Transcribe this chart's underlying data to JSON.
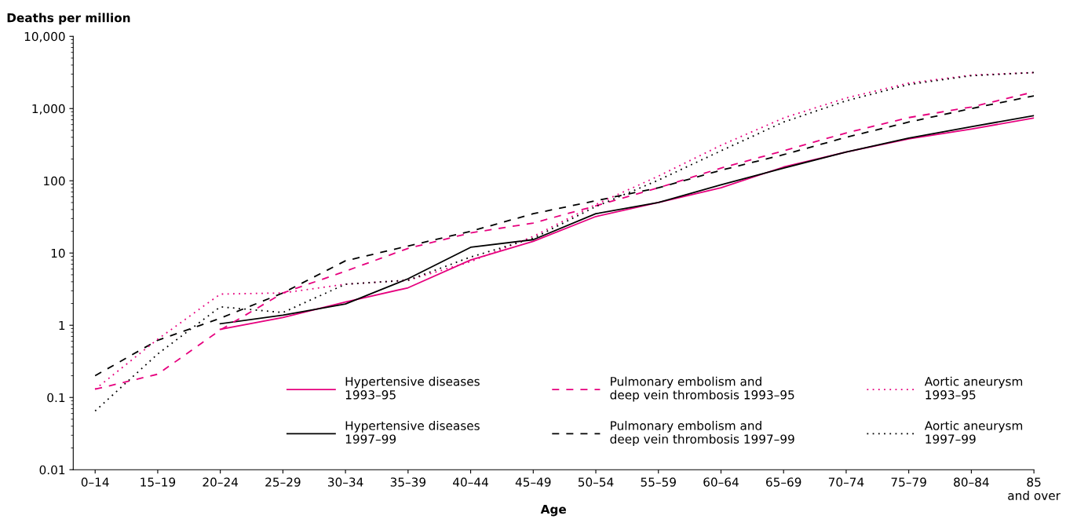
{
  "chart_data": {
    "type": "line",
    "ylabel": "Deaths per million",
    "xlabel": "Age",
    "categories": [
      "0–14",
      "15–19",
      "20–24",
      "25–29",
      "30–34",
      "35–39",
      "40–44",
      "45–49",
      "50–54",
      "55–59",
      "60–64",
      "65–69",
      "70–74",
      "75–79",
      "80–84",
      "85\nand over"
    ],
    "log": "y",
    "ylim": [
      0.01,
      10000
    ],
    "yticks": [
      0.01,
      0.1,
      1,
      10,
      100,
      {
        "value": 1000,
        "label": "1,000"
      },
      {
        "value": 10000,
        "label": "10,000"
      }
    ],
    "grid": false,
    "legend": "bottom right",
    "marker": "none",
    "series": [
      {
        "name": "Hypertensive diseases\n1993–95",
        "color": "#e6007e",
        "line_style": "solid",
        "values": [
          null,
          null,
          0.88,
          1.28,
          2.1,
          3.3,
          8,
          14.5,
          32,
          50,
          80,
          155,
          250,
          380,
          520,
          740
        ]
      },
      {
        "name": "Hypertensive diseases\n1997–99",
        "color": "#000000",
        "line_style": "solid",
        "values": [
          null,
          null,
          1.05,
          1.38,
          1.97,
          4.4,
          12,
          15.3,
          35,
          50,
          88,
          150,
          250,
          390,
          560,
          800
        ]
      },
      {
        "name": "Pulmonary embolism and\ndeep vein thrombosis 1993–95",
        "color": "#e6007e",
        "line_style": "dashed",
        "values": [
          0.13,
          0.21,
          0.86,
          2.8,
          5.6,
          11.6,
          19,
          26,
          45,
          80,
          150,
          260,
          460,
          750,
          1050,
          1700
        ]
      },
      {
        "name": "Pulmonary embolism and\ndeep vein thrombosis 1997–99",
        "color": "#000000",
        "line_style": "dashed",
        "values": [
          0.2,
          0.62,
          1.25,
          2.8,
          7.8,
          12.5,
          20,
          35,
          53,
          80,
          140,
          230,
          400,
          650,
          1000,
          1500
        ]
      },
      {
        "name": "Aortic aneurysm\n1993–95",
        "color": "#e6007e",
        "line_style": "dotted",
        "values": [
          0.13,
          0.64,
          2.7,
          2.8,
          3.7,
          4.2,
          7.6,
          17,
          47,
          116,
          310,
          740,
          1400,
          2250,
          2900,
          3150
        ]
      },
      {
        "name": "Aortic aneurysm\n1997–99",
        "color": "#000000",
        "line_style": "dotted",
        "values": [
          0.065,
          0.4,
          1.8,
          1.5,
          3.7,
          4.2,
          8.8,
          16,
          44,
          102,
          260,
          650,
          1280,
          2150,
          2850,
          3150
        ]
      }
    ]
  }
}
